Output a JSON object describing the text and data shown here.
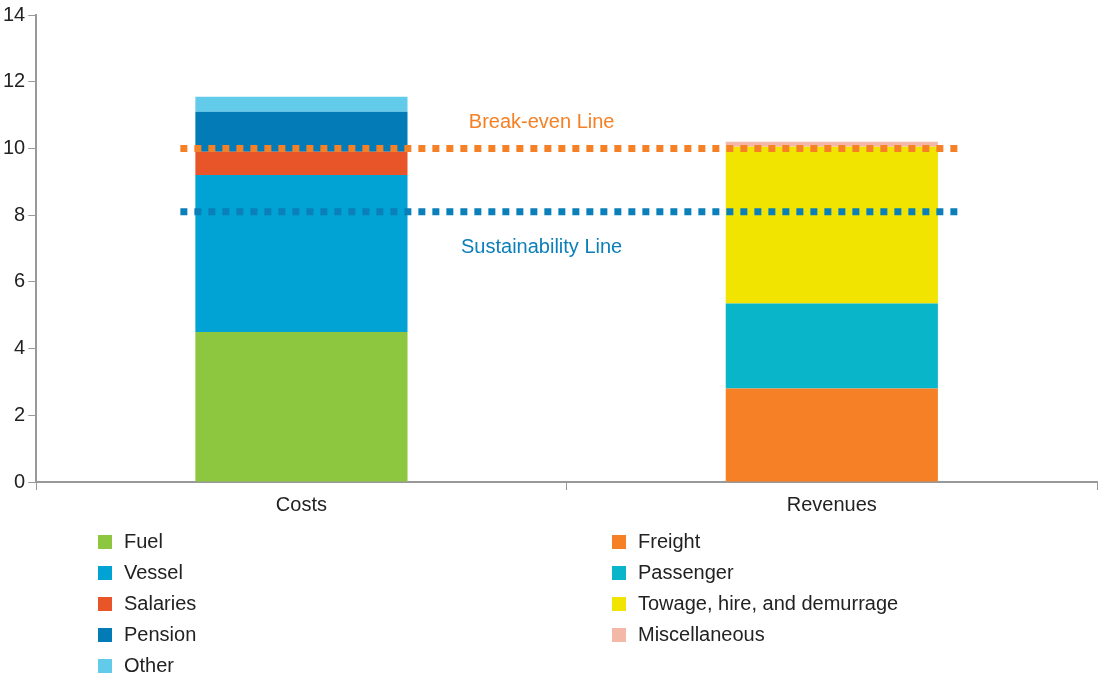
{
  "chart_data": {
    "type": "bar",
    "stacked": true,
    "categories": [
      "Costs",
      "Revenues"
    ],
    "series": [
      {
        "name": "Fuel",
        "color": "#8dc63f",
        "values": [
          4.5,
          null
        ]
      },
      {
        "name": "Vessel",
        "color": "#00a3d3",
        "values": [
          4.7,
          null
        ]
      },
      {
        "name": "Salaries",
        "color": "#e85528",
        "values": [
          0.7,
          null
        ]
      },
      {
        "name": "Pension",
        "color": "#037bb6",
        "values": [
          1.2,
          null
        ]
      },
      {
        "name": "Other",
        "color": "#62cbe9",
        "values": [
          0.45,
          null
        ]
      },
      {
        "name": "Freight",
        "color": "#f58025",
        "values": [
          null,
          2.8
        ]
      },
      {
        "name": "Passenger",
        "color": "#09b5c9",
        "values": [
          null,
          2.55
        ]
      },
      {
        "name": "Towage, hire, and demurrage",
        "color": "#f0e400",
        "values": [
          null,
          4.7
        ]
      },
      {
        "name": "Miscellaneous",
        "color": "#f3b8a8",
        "values": [
          null,
          0.15
        ]
      }
    ],
    "ylim": [
      0,
      14
    ],
    "yticks": [
      0,
      2,
      4,
      6,
      8,
      10,
      12,
      14
    ],
    "grid": false,
    "legend": "bottom",
    "ref_lines": [
      {
        "axis": "y",
        "value": 10,
        "label": "Break-even Line",
        "color": "#f58025",
        "line_style": "dotted"
      },
      {
        "axis": "y",
        "value": 8.1,
        "label": "Sustainability Line",
        "color": "#0a7fba",
        "line_style": "dotted"
      }
    ]
  }
}
